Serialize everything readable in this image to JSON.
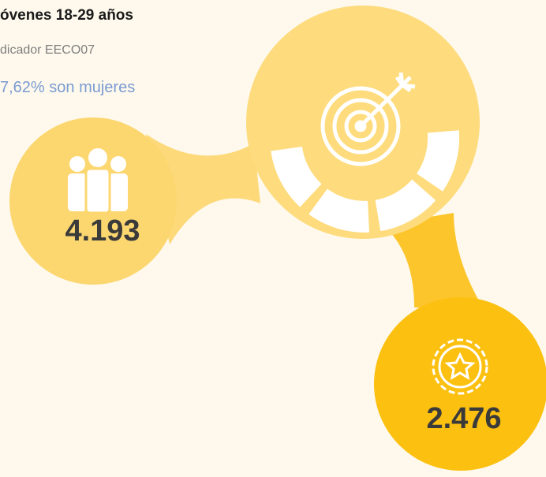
{
  "header": {
    "title": "óvenes 18-29 años",
    "indicator": "dicador EECO07",
    "subtitle": "7,62% son mujeres"
  },
  "nodes": [
    {
      "value": "4.193"
    },
    {
      "value": "2.476"
    }
  ]
}
